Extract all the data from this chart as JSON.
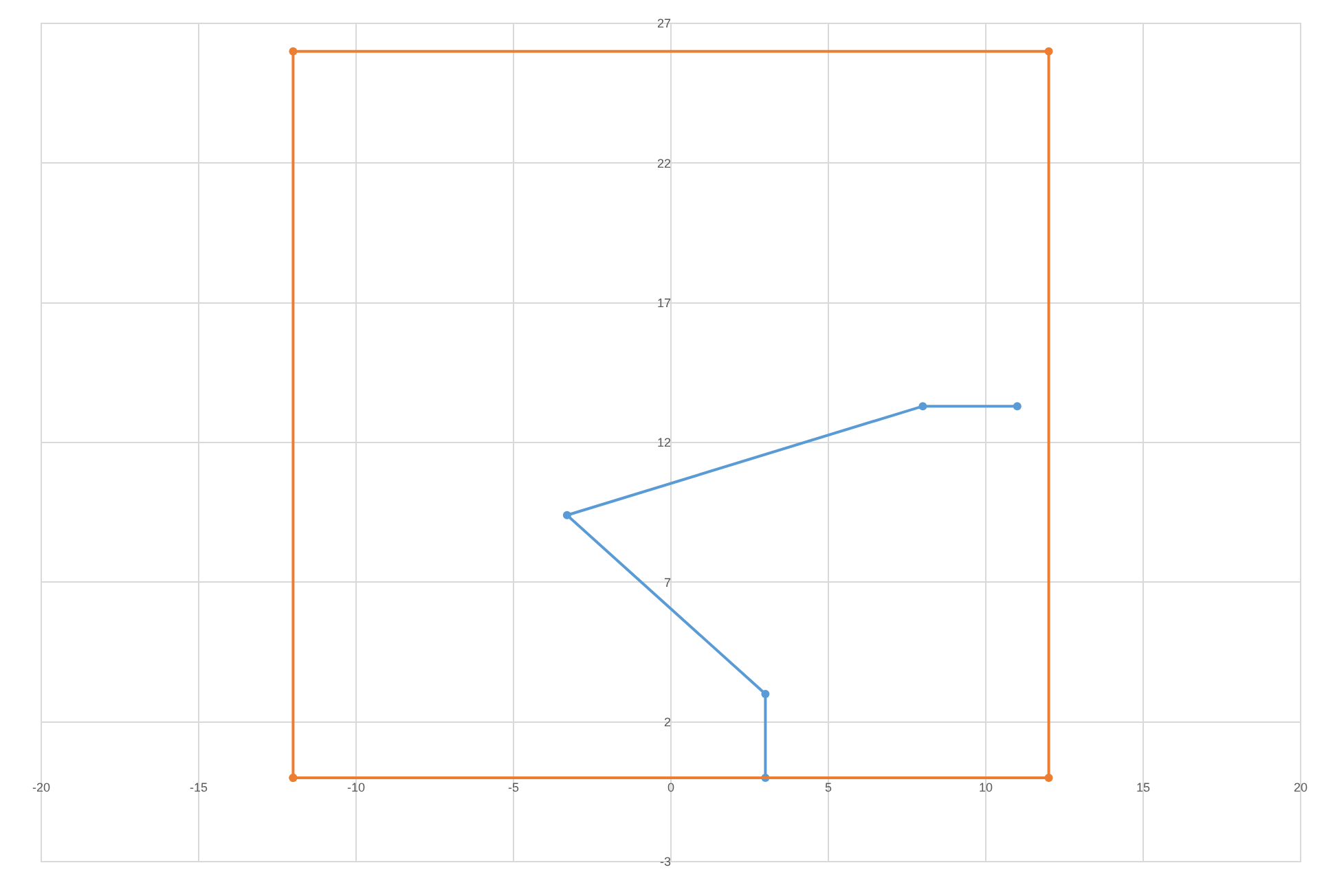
{
  "chart_data": {
    "type": "line",
    "marker": "circle",
    "grid": true,
    "xlim": [
      -20,
      20
    ],
    "xticks": [
      -20,
      -15,
      -10,
      -5,
      0,
      5,
      10,
      15,
      20
    ],
    "ylim": [
      -3,
      27
    ],
    "yticks": [
      -3,
      2,
      7,
      12,
      17,
      22,
      27
    ],
    "series": [
      {
        "color": "#5b9bd5",
        "x": [
          3,
          3,
          -3.3,
          8,
          11
        ],
        "values": [
          0,
          3,
          9.4,
          13.3,
          13.3
        ]
      },
      {
        "type": "scatter",
        "line_style": "solid",
        "color": "#ed7d31",
        "x": [
          -12,
          -12,
          12,
          12,
          -12
        ],
        "values": [
          0,
          26,
          26,
          0,
          0
        ]
      }
    ]
  }
}
